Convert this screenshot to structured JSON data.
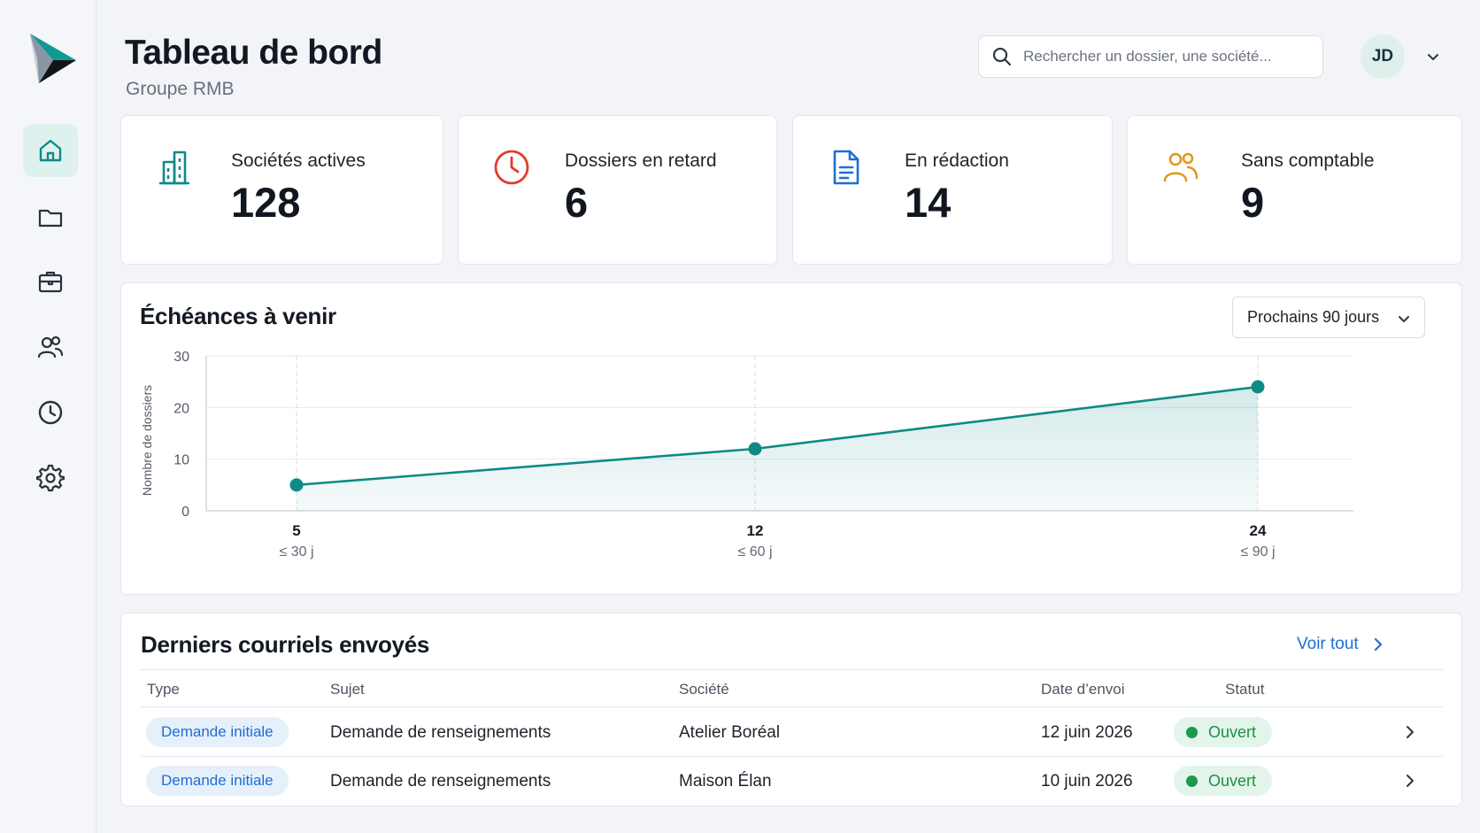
{
  "app": {
    "title": "Tableau de bord",
    "subtitle": "Groupe RMB"
  },
  "colors": {
    "accent": "#0f8a86",
    "accent_light": "#def1ef",
    "danger": "#e03c2b",
    "info": "#1f6fd1",
    "warning": "#e09a1c",
    "success": "#1a9a4b"
  },
  "sidebar": {
    "logo": "logo-mark",
    "items": [
      {
        "name": "home",
        "icon": "home-icon",
        "active": true
      },
      {
        "name": "folders",
        "icon": "folder-icon",
        "active": false
      },
      {
        "name": "companies",
        "icon": "briefcase-icon",
        "active": false
      },
      {
        "name": "users",
        "icon": "users-icon",
        "active": false
      },
      {
        "name": "history",
        "icon": "clock-icon",
        "active": false
      },
      {
        "name": "settings",
        "icon": "gear-icon",
        "active": false
      }
    ]
  },
  "header": {
    "search": {
      "placeholder": "Rechercher un dossier, une société...",
      "value": ""
    },
    "user": {
      "initials": "JD"
    }
  },
  "kpis": [
    {
      "label": "Sociétés actives",
      "value": "128",
      "icon": "building-icon",
      "color": "#0f8a86"
    },
    {
      "label": "Dossiers en retard",
      "value": "6",
      "icon": "clock-icon",
      "color": "#e03c2b"
    },
    {
      "label": "En rédaction",
      "value": "14",
      "icon": "document-icon",
      "color": "#1f6fd1"
    },
    {
      "label": "Sans comptable",
      "value": "9",
      "icon": "users-icon",
      "color": "#e09a1c"
    }
  ],
  "deadlines": {
    "title": "Échéances à venir",
    "period": "Prochains 90 jours"
  },
  "chart_data": {
    "type": "line",
    "title": "Échéances à venir",
    "ylabel": "Nombre de dossiers",
    "xlabel": "",
    "ylim": [
      0,
      30
    ],
    "yticks": [
      0,
      10,
      20,
      30
    ],
    "grid": true,
    "fill_area": true,
    "categories": [
      "≤ 30 j",
      "≤ 60 j",
      "≤ 90 j"
    ],
    "series": [
      {
        "values": [
          5,
          12,
          24
        ]
      }
    ]
  },
  "emails": {
    "title": "Derniers courriels envoyés",
    "view_all": "Voir tout",
    "columns": [
      "Type",
      "Sujet",
      "Société",
      "Date d’envoi",
      "Statut"
    ],
    "rows": [
      {
        "type": "Demande initiale",
        "subject": "Demande de renseignements",
        "company": "Atelier Boréal",
        "date": "12 juin 2026",
        "status": "Ouvert"
      },
      {
        "type": "Demande initiale",
        "subject": "Demande de renseignements",
        "company": "Maison Élan",
        "date": "10 juin 2026",
        "status": "Ouvert"
      }
    ]
  }
}
